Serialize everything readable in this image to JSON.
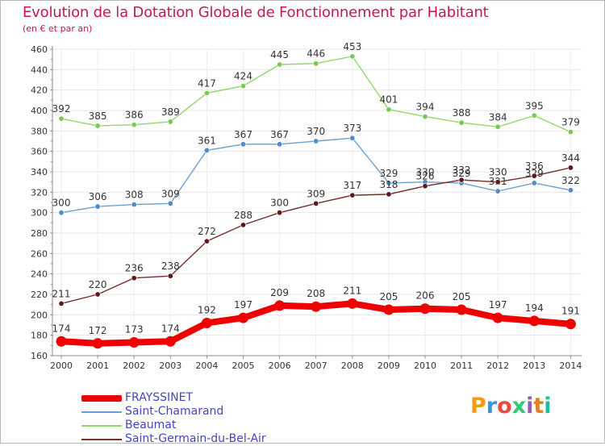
{
  "chart_data": {
    "type": "line",
    "title": "Evolution de la Dotation Globale de Fonctionnement par Habitant",
    "subtitle": "(en € et par an)",
    "xlabel": "",
    "ylabel": "",
    "ylim": [
      160,
      460
    ],
    "yticks": [
      160,
      180,
      200,
      220,
      240,
      260,
      280,
      300,
      320,
      340,
      360,
      380,
      400,
      420,
      440,
      460
    ],
    "categories": [
      "2000",
      "2001",
      "2002",
      "2003",
      "2004",
      "2005",
      "2006",
      "2007",
      "2008",
      "2009",
      "2010",
      "2011",
      "2012",
      "2013",
      "2014"
    ],
    "grid": true,
    "series": [
      {
        "name": "Beaumat",
        "color": "#8fd86b",
        "dot": "#7ac94f",
        "values": [
          392,
          385,
          386,
          389,
          417,
          424,
          445,
          446,
          453,
          401,
          394,
          388,
          384,
          395,
          379
        ],
        "labels": [
          "392",
          "385",
          "386",
          "389",
          "417",
          "424",
          "445",
          "446",
          "453",
          "401",
          "394",
          "388",
          "384",
          "395",
          "379"
        ]
      },
      {
        "name": "Saint-Chamarand",
        "color": "#6a9fd0",
        "dot": "#4f8cc8",
        "values": [
          300,
          306,
          308,
          309,
          361,
          367,
          367,
          370,
          373,
          329,
          330,
          329,
          321,
          329,
          322
        ],
        "labels": [
          "300",
          "306",
          "308",
          "309",
          "361",
          "367",
          "367",
          "370",
          "373",
          "329",
          "330",
          "329",
          "321",
          "329",
          "322"
        ]
      },
      {
        "name": "Saint-Germain-du-Bel-Air",
        "color": "#7a2d2d",
        "dot": "#5c1a1a",
        "values": [
          211,
          220,
          236,
          238,
          272,
          288,
          300,
          309,
          317,
          318,
          326,
          332,
          330,
          336,
          344
        ],
        "labels": [
          "211",
          "220",
          "236",
          "238",
          "272",
          "288",
          "300",
          "309",
          "317",
          "318",
          "326",
          "332",
          "330",
          "336",
          "344"
        ]
      },
      {
        "name": "FRAYSSINET",
        "color": "#ee0000",
        "dot": "#ee0000",
        "values": [
          174,
          172,
          173,
          174,
          192,
          197,
          209,
          208,
          211,
          205,
          206,
          205,
          197,
          194,
          191
        ],
        "labels": [
          "174",
          "172",
          "173",
          "174",
          "192",
          "197",
          "209",
          "208",
          "211",
          "205",
          "206",
          "205",
          "197",
          "194",
          "191"
        ]
      }
    ],
    "legend": {
      "position": "bottom-left",
      "entries": [
        "FRAYSSINET",
        "Saint-Chamarand",
        "Beaumat",
        "Saint-Germain-du-Bel-Air"
      ]
    }
  },
  "legend_colors": {
    "FRAYSSINET": "#ee0000",
    "Saint-Chamarand": "#6a9fd0",
    "Beaumat": "#8fd86b",
    "Saint-Germain-du-Bel-Air": "#7a2d2d"
  },
  "logo": {
    "text": "Proxiti",
    "colors": [
      "#f39c12",
      "#3498db",
      "#e74c3c",
      "#2ecc71",
      "#9b59b6",
      "#e67e22",
      "#1abc9c"
    ]
  }
}
